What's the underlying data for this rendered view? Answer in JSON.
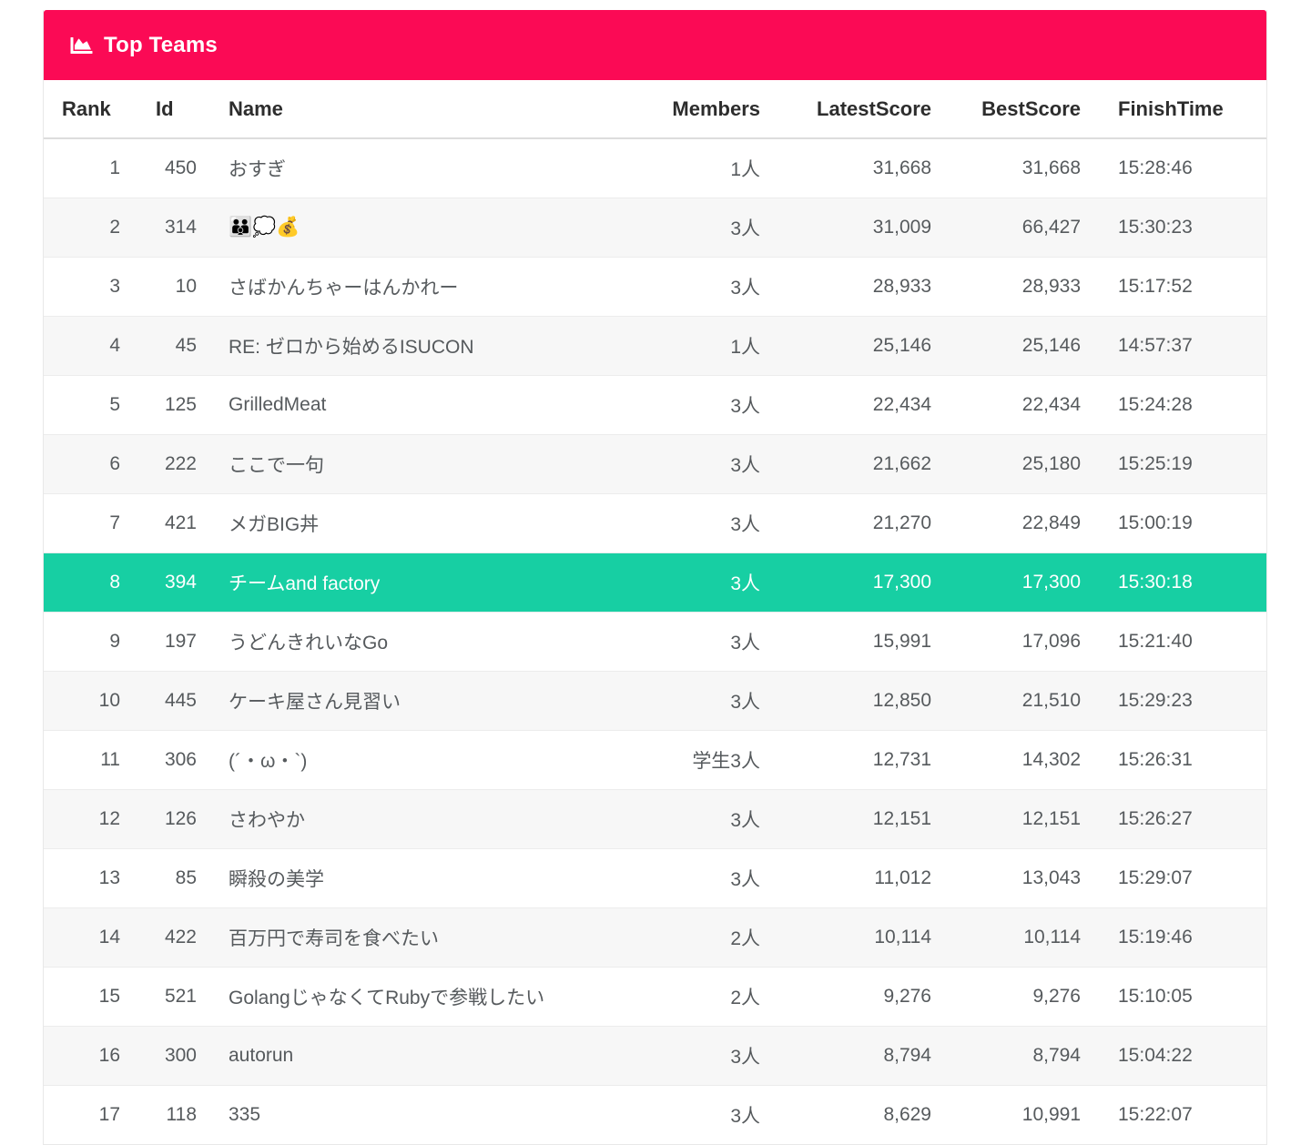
{
  "colors": {
    "heading_bg": "#fb0a55",
    "heading_text": "#ffffff",
    "highlight_row_bg": "#17cfa3",
    "highlight_row_text": "#ffffff",
    "even_row_bg": "#f7f7f7",
    "cell_text": "#565a5d",
    "header_text": "#2d2d2d"
  },
  "panel": {
    "title": "Top Teams",
    "title_icon": "chart-area-icon"
  },
  "table": {
    "columns": [
      {
        "key": "rank",
        "label": "Rank"
      },
      {
        "key": "id",
        "label": "Id"
      },
      {
        "key": "name",
        "label": "Name"
      },
      {
        "key": "members",
        "label": "Members"
      },
      {
        "key": "latest_score",
        "label": "LatestScore"
      },
      {
        "key": "best_score",
        "label": "BestScore"
      },
      {
        "key": "finish_time",
        "label": "FinishTime"
      }
    ],
    "rows": [
      {
        "rank": "1",
        "id": "450",
        "name": "おすぎ",
        "members": "1人",
        "latest_score": "31,668",
        "best_score": "31,668",
        "finish_time": "15:28:46",
        "highlighted": false
      },
      {
        "rank": "2",
        "id": "314",
        "name": "👨‍👨‍👦💭💰",
        "members": "3人",
        "latest_score": "31,009",
        "best_score": "66,427",
        "finish_time": "15:30:23",
        "highlighted": false
      },
      {
        "rank": "3",
        "id": "10",
        "name": "さばかんちゃーはんかれー",
        "members": "3人",
        "latest_score": "28,933",
        "best_score": "28,933",
        "finish_time": "15:17:52",
        "highlighted": false
      },
      {
        "rank": "4",
        "id": "45",
        "name": "RE: ゼロから始めるISUCON",
        "members": "1人",
        "latest_score": "25,146",
        "best_score": "25,146",
        "finish_time": "14:57:37",
        "highlighted": false
      },
      {
        "rank": "5",
        "id": "125",
        "name": "GrilledMeat",
        "members": "3人",
        "latest_score": "22,434",
        "best_score": "22,434",
        "finish_time": "15:24:28",
        "highlighted": false
      },
      {
        "rank": "6",
        "id": "222",
        "name": "ここで一句",
        "members": "3人",
        "latest_score": "21,662",
        "best_score": "25,180",
        "finish_time": "15:25:19",
        "highlighted": false
      },
      {
        "rank": "7",
        "id": "421",
        "name": "メガBIG丼",
        "members": "3人",
        "latest_score": "21,270",
        "best_score": "22,849",
        "finish_time": "15:00:19",
        "highlighted": false
      },
      {
        "rank": "8",
        "id": "394",
        "name": "チームand factory",
        "members": "3人",
        "latest_score": "17,300",
        "best_score": "17,300",
        "finish_time": "15:30:18",
        "highlighted": true
      },
      {
        "rank": "9",
        "id": "197",
        "name": "うどんきれいなGo",
        "members": "3人",
        "latest_score": "15,991",
        "best_score": "17,096",
        "finish_time": "15:21:40",
        "highlighted": false
      },
      {
        "rank": "10",
        "id": "445",
        "name": "ケーキ屋さん見習い",
        "members": "3人",
        "latest_score": "12,850",
        "best_score": "21,510",
        "finish_time": "15:29:23",
        "highlighted": false
      },
      {
        "rank": "11",
        "id": "306",
        "name": "(´・ω・`)",
        "members": "学生3人",
        "latest_score": "12,731",
        "best_score": "14,302",
        "finish_time": "15:26:31",
        "highlighted": false
      },
      {
        "rank": "12",
        "id": "126",
        "name": "さわやか",
        "members": "3人",
        "latest_score": "12,151",
        "best_score": "12,151",
        "finish_time": "15:26:27",
        "highlighted": false
      },
      {
        "rank": "13",
        "id": "85",
        "name": "瞬殺の美学",
        "members": "3人",
        "latest_score": "11,012",
        "best_score": "13,043",
        "finish_time": "15:29:07",
        "highlighted": false
      },
      {
        "rank": "14",
        "id": "422",
        "name": "百万円で寿司を食べたい",
        "members": "2人",
        "latest_score": "10,114",
        "best_score": "10,114",
        "finish_time": "15:19:46",
        "highlighted": false
      },
      {
        "rank": "15",
        "id": "521",
        "name": "GolangじゃなくてRubyで参戦したい",
        "members": "2人",
        "latest_score": "9,276",
        "best_score": "9,276",
        "finish_time": "15:10:05",
        "highlighted": false
      },
      {
        "rank": "16",
        "id": "300",
        "name": "autorun",
        "members": "3人",
        "latest_score": "8,794",
        "best_score": "8,794",
        "finish_time": "15:04:22",
        "highlighted": false
      },
      {
        "rank": "17",
        "id": "118",
        "name": "335",
        "members": "3人",
        "latest_score": "8,629",
        "best_score": "10,991",
        "finish_time": "15:22:07",
        "highlighted": false
      }
    ]
  }
}
